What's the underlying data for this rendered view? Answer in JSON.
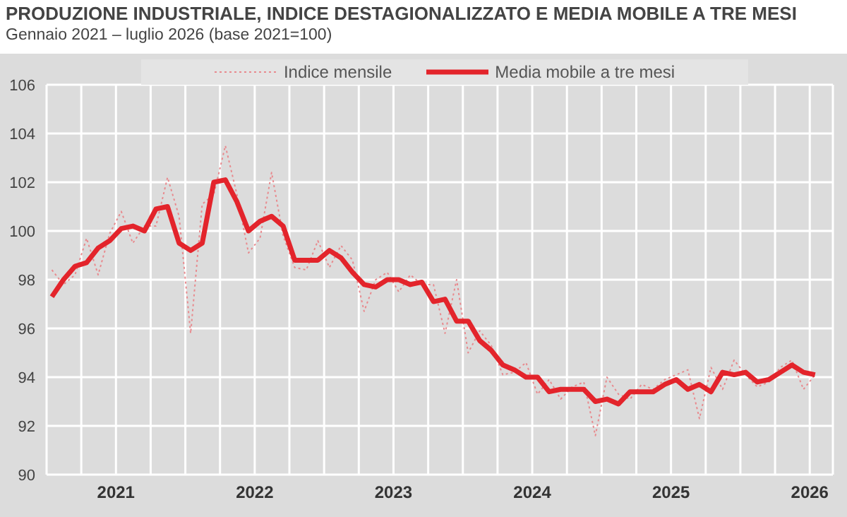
{
  "chart_data": {
    "type": "line",
    "title": "PRODUZIONE INDUSTRIALE, INDICE DESTAGIONALIZZATO E MEDIA MOBILE A TRE MESI",
    "subtitle": "Gennaio 2021 – luglio 2026 (base 2021=100)",
    "x": [
      "2021-01-15",
      "2021-02-15",
      "2021-03-15",
      "2021-04-15",
      "2021-05-15",
      "2021-06-15",
      "2021-07-15",
      "2021-08-15",
      "2021-09-15",
      "2021-10-15",
      "2021-11-15",
      "2021-12-15",
      "2022-01-15",
      "2022-02-15",
      "2022-03-15",
      "2022-04-15",
      "2022-05-15",
      "2022-06-15",
      "2022-07-15",
      "2022-08-15",
      "2022-09-15",
      "2022-10-15",
      "2022-11-15",
      "2022-12-15",
      "2023-01-15",
      "2023-02-15",
      "2023-03-15",
      "2023-04-15",
      "2023-05-15",
      "2023-06-15",
      "2023-07-15",
      "2023-08-15",
      "2023-09-15",
      "2023-10-15",
      "2023-11-15",
      "2023-12-15",
      "2024-01-15",
      "2024-02-15",
      "2024-03-15",
      "2024-04-15",
      "2024-05-15",
      "2024-06-15",
      "2024-07-15",
      "2024-08-15",
      "2024-09-15",
      "2024-10-15",
      "2024-11-15",
      "2024-12-15",
      "2025-01-15",
      "2025-02-15",
      "2025-03-15",
      "2025-04-15",
      "2025-05-15",
      "2025-06-15",
      "2025-07-15",
      "2025-08-15",
      "2025-09-15",
      "2025-10-15",
      "2025-11-15",
      "2025-12-15",
      "2026-01-15",
      "2026-02-15",
      "2026-03-15",
      "2026-04-15",
      "2026-05-15",
      "2026-06-15",
      "2026-07-15"
    ],
    "series": [
      {
        "name": "Indice mensile",
        "color": "#e88a8e",
        "line_style": "dotted",
        "values": [
          98.4,
          97.8,
          98.2,
          99.7,
          98.2,
          99.9,
          100.8,
          99.5,
          100.2,
          100.2,
          102.2,
          100.6,
          95.8,
          101.1,
          101.5,
          103.5,
          101.5,
          99.1,
          99.7,
          102.4,
          99.8,
          98.5,
          98.4,
          99.6,
          98.5,
          99.4,
          98.8,
          96.7,
          98.0,
          98.3,
          97.5,
          98.2,
          97.8,
          97.8,
          95.8,
          98.0,
          95.0,
          95.9,
          95.3,
          94.1,
          94.2,
          94.6,
          93.3,
          93.9,
          93.1,
          93.6,
          93.8,
          91.6,
          94.0,
          93.3,
          93.1,
          93.7,
          93.5,
          93.9,
          94.1,
          94.3,
          92.3,
          94.4,
          93.5,
          94.7,
          94.1,
          93.6,
          93.8,
          94.4,
          94.7,
          93.5,
          94.1
        ]
      },
      {
        "name": "Media mobile a tre mesi",
        "color": "#e3242b",
        "line_style": "solid",
        "values": [
          97.3,
          98.0,
          98.55,
          98.7,
          99.3,
          99.6,
          100.1,
          100.2,
          100.0,
          100.9,
          101.0,
          99.5,
          99.2,
          99.5,
          102.0,
          102.1,
          101.2,
          100.0,
          100.4,
          100.6,
          100.2,
          98.8,
          98.8,
          98.8,
          99.2,
          98.9,
          98.3,
          97.8,
          97.7,
          98.0,
          98.0,
          97.8,
          97.9,
          97.1,
          97.2,
          96.3,
          96.3,
          95.5,
          95.1,
          94.5,
          94.3,
          94.0,
          94.0,
          93.4,
          93.5,
          93.5,
          93.5,
          93.0,
          93.1,
          92.9,
          93.4,
          93.4,
          93.4,
          93.7,
          93.9,
          93.5,
          93.7,
          93.4,
          94.2,
          94.1,
          94.2,
          93.8,
          93.9,
          94.2,
          94.5,
          94.2,
          94.1
        ]
      }
    ],
    "xlim": [
      "2021-01-01",
      "2026-09-01"
    ],
    "xticks": [
      {
        "value": "2021-01",
        "label": null
      },
      {
        "value": "2021-04",
        "label": null
      },
      {
        "value": "2021-07",
        "label": "2021"
      },
      {
        "value": "2021-10",
        "label": null
      },
      {
        "value": "2022-01",
        "label": null
      },
      {
        "value": "2022-04",
        "label": null
      },
      {
        "value": "2022-07",
        "label": "2022"
      },
      {
        "value": "2022-10",
        "label": null
      },
      {
        "value": "2023-01",
        "label": null
      },
      {
        "value": "2023-04",
        "label": null
      },
      {
        "value": "2023-07",
        "label": "2023"
      },
      {
        "value": "2023-10",
        "label": null
      },
      {
        "value": "2024-01",
        "label": null
      },
      {
        "value": "2024-04",
        "label": null
      },
      {
        "value": "2024-07",
        "label": "2024"
      },
      {
        "value": "2024-10",
        "label": null
      },
      {
        "value": "2025-01",
        "label": null
      },
      {
        "value": "2025-04",
        "label": null
      },
      {
        "value": "2025-07",
        "label": "2025"
      },
      {
        "value": "2025-10",
        "label": null
      },
      {
        "value": "2026-01",
        "label": null
      },
      {
        "value": "2026-04",
        "label": null
      },
      {
        "value": "2026-07",
        "label": "2026"
      }
    ],
    "ylim": [
      90,
      106
    ],
    "yticks": [
      90,
      92,
      94,
      96,
      98,
      100,
      102,
      104,
      106
    ],
    "grid": true,
    "legend": "top",
    "marker": "none"
  }
}
